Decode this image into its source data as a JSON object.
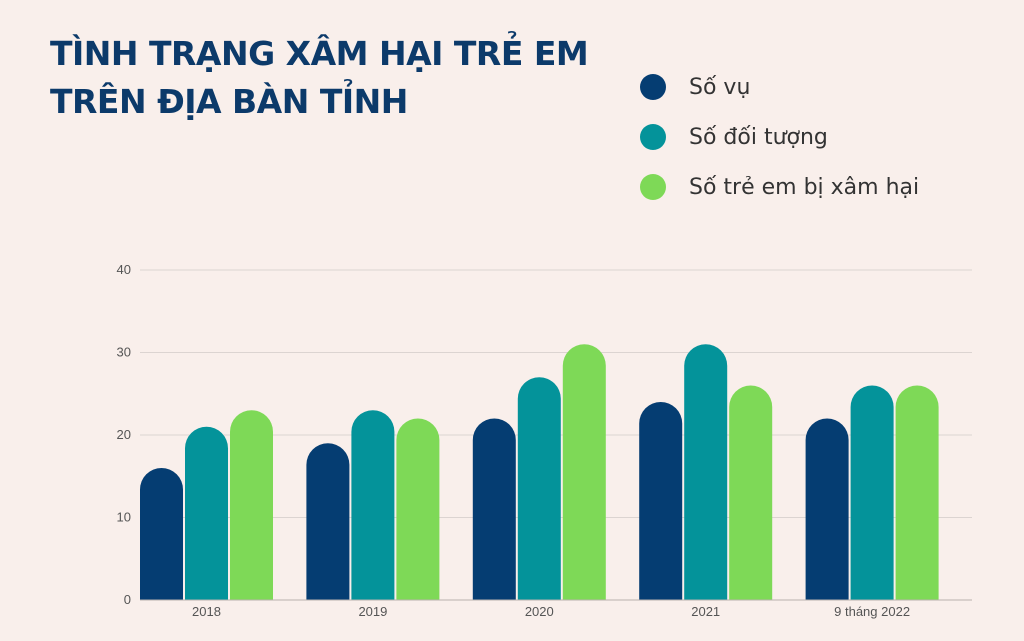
{
  "title_lines": [
    "TÌNH TRẠNG XÂM HẠI TRẺ EM",
    "TRÊN ĐỊA BÀN TỈNH"
  ],
  "legend": [
    {
      "label": "Số vụ",
      "color": "#053d72"
    },
    {
      "label": "Số đối tượng",
      "color": "#04939a"
    },
    {
      "label": "Số trẻ em bị xâm hại",
      "color": "#7ed957"
    }
  ],
  "chart_data": {
    "type": "bar",
    "title": "TÌNH TRẠNG XÂM HẠI TRẺ EM TRÊN ĐỊA BÀN TỈNH",
    "categories": [
      "2018",
      "2019",
      "2020",
      "2021",
      "9 tháng 2022"
    ],
    "series": [
      {
        "name": "Số vụ",
        "color": "#053d72",
        "values": [
          16,
          19,
          22,
          24,
          22
        ]
      },
      {
        "name": "Số đối tượng",
        "color": "#04939a",
        "values": [
          21,
          23,
          27,
          31,
          26
        ]
      },
      {
        "name": "Số trẻ em bị xâm hại",
        "color": "#7ed957",
        "values": [
          23,
          22,
          31,
          26,
          26
        ]
      }
    ],
    "ylim": [
      0,
      40
    ],
    "yticks": [
      0,
      10,
      20,
      30,
      40
    ],
    "grid": true,
    "legend_position": "top-right"
  }
}
